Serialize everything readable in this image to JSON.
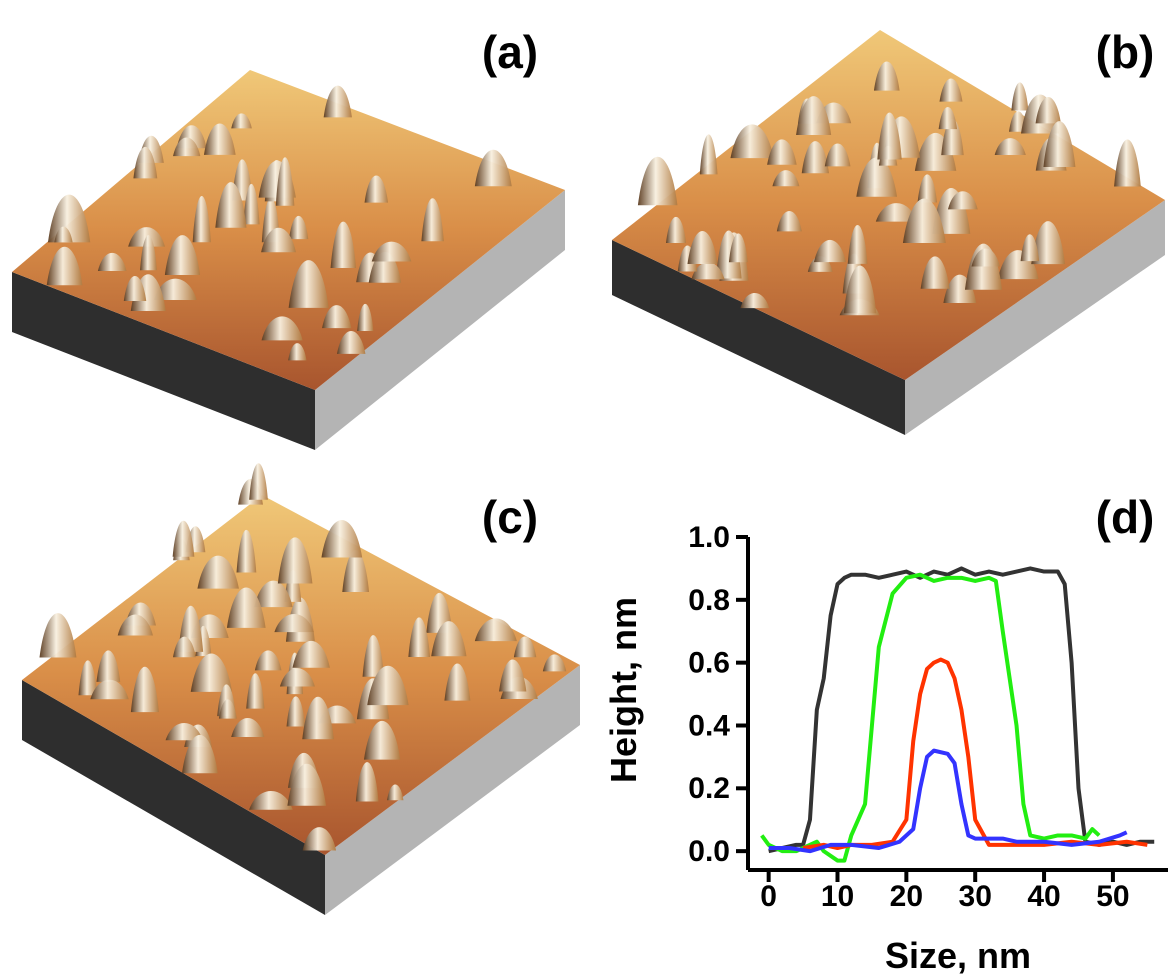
{
  "panel_labels": [
    "(a)",
    "(b)",
    "(c)"
  ],
  "chart_data": {
    "type": "line",
    "title": "(d)",
    "x_label": "Size, nm",
    "y_label": "Height, nm",
    "xlim": [
      -3,
      58
    ],
    "ylim": [
      -0.06,
      1.0
    ],
    "xticks": [
      0,
      10,
      20,
      30,
      40,
      50
    ],
    "yticks": [
      {
        "value": 0,
        "label": "0.0"
      },
      0.2,
      0.4,
      0.6,
      0.8,
      {
        "value": 1,
        "label": "1.0"
      }
    ],
    "series": [
      {
        "color": "#333333",
        "x": [
          0,
          2,
          4,
          5,
          6,
          7,
          8,
          9,
          10,
          11,
          12,
          14,
          16,
          18,
          20,
          22,
          24,
          26,
          28,
          30,
          32,
          34,
          36,
          38,
          40,
          42,
          43,
          44,
          45,
          46,
          48,
          50,
          52,
          54,
          56
        ],
        "values": [
          0.0,
          0.01,
          0.02,
          0.02,
          0.1,
          0.45,
          0.55,
          0.75,
          0.85,
          0.87,
          0.88,
          0.88,
          0.87,
          0.88,
          0.89,
          0.87,
          0.89,
          0.88,
          0.9,
          0.88,
          0.89,
          0.88,
          0.89,
          0.9,
          0.89,
          0.89,
          0.85,
          0.6,
          0.2,
          0.03,
          0.02,
          0.03,
          0.02,
          0.03,
          0.03
        ]
      },
      {
        "color": "#22ee11",
        "x": [
          -1,
          0,
          2,
          4,
          6,
          7,
          8,
          10,
          11,
          12,
          14,
          15,
          16,
          18,
          20,
          22,
          24,
          26,
          28,
          30,
          32,
          33,
          34,
          36,
          37,
          38,
          40,
          42,
          44,
          46,
          47,
          48
        ],
        "values": [
          0.05,
          0.02,
          0.0,
          0.0,
          0.02,
          0.03,
          0.0,
          -0.03,
          -0.03,
          0.05,
          0.15,
          0.4,
          0.65,
          0.82,
          0.87,
          0.88,
          0.86,
          0.87,
          0.87,
          0.86,
          0.87,
          0.86,
          0.7,
          0.4,
          0.15,
          0.05,
          0.04,
          0.05,
          0.05,
          0.04,
          0.07,
          0.05
        ]
      },
      {
        "color": "#ff3300",
        "x": [
          5,
          8,
          10,
          12,
          15,
          18,
          20,
          21,
          22,
          23,
          24,
          25,
          26,
          27,
          28,
          29,
          30,
          32,
          36,
          40,
          44,
          48,
          52,
          55
        ],
        "values": [
          0.01,
          0.02,
          0.01,
          0.02,
          0.02,
          0.03,
          0.1,
          0.35,
          0.5,
          0.58,
          0.6,
          0.61,
          0.6,
          0.55,
          0.45,
          0.3,
          0.1,
          0.02,
          0.02,
          0.02,
          0.03,
          0.02,
          0.03,
          0.02
        ]
      },
      {
        "color": "#3333ff",
        "x": [
          0,
          3,
          6,
          9,
          12,
          16,
          19,
          21,
          22,
          23,
          24,
          26,
          27,
          28,
          29,
          30,
          34,
          36,
          40,
          44,
          48,
          51,
          52
        ],
        "values": [
          0.01,
          0.01,
          0.0,
          0.02,
          0.02,
          0.01,
          0.03,
          0.07,
          0.2,
          0.3,
          0.32,
          0.31,
          0.28,
          0.15,
          0.05,
          0.04,
          0.04,
          0.03,
          0.03,
          0.02,
          0.03,
          0.05,
          0.06
        ]
      }
    ]
  }
}
